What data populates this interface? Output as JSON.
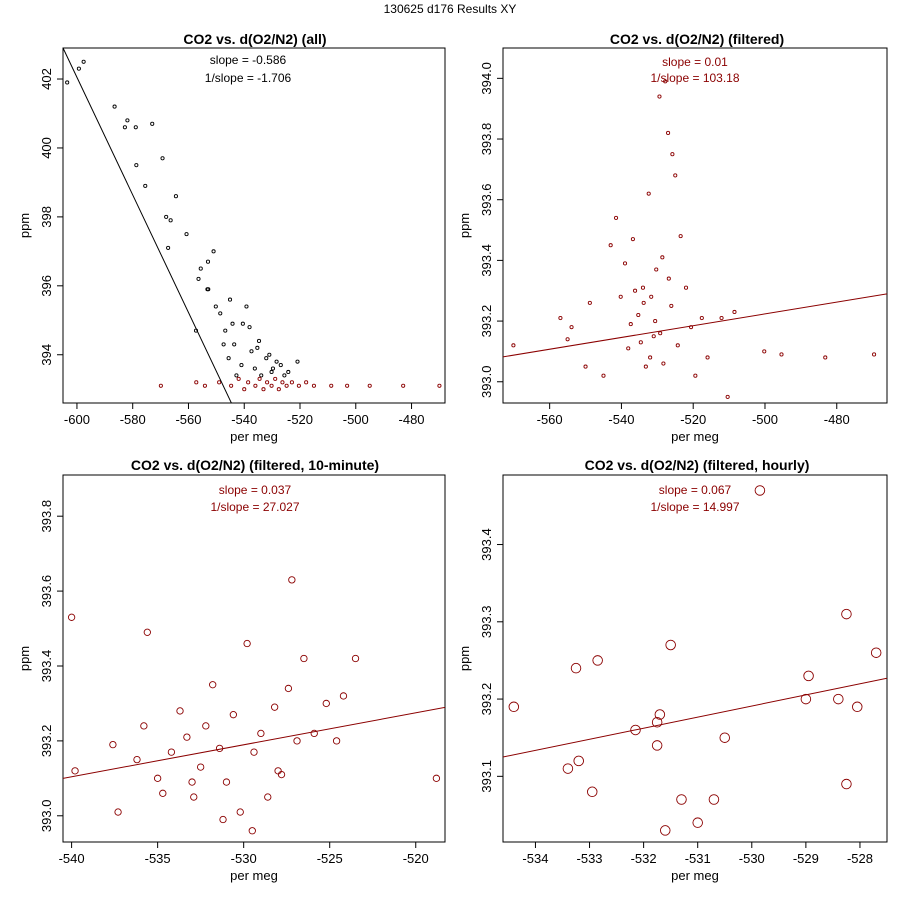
{
  "page_title": "130625   d176   Results XY",
  "colors": {
    "black": "#000000",
    "red": "#8b0000"
  },
  "chart_data": [
    {
      "type": "scatter",
      "title": "CO2 vs. d(O2/N2) (all)",
      "xlabel": "per meg",
      "ylabel": "ppm",
      "xlim": [
        -605,
        -468
      ],
      "ylim": [
        392.6,
        402.9
      ],
      "xticks": [
        -600,
        -580,
        -560,
        -540,
        -520,
        -500,
        -480
      ],
      "yticks": [
        394,
        396,
        398,
        400,
        402
      ],
      "annotations": [
        {
          "text": "slope = -0.586",
          "color": "black"
        },
        {
          "text": "1/slope = -1.706",
          "color": "black"
        }
      ],
      "fit_line": {
        "slope": -0.1706,
        "x0": -600,
        "y0": 402.05,
        "color": "black"
      },
      "series": [
        {
          "name": "all",
          "color": "black",
          "points": [
            [
              -603.5,
              401.9
            ],
            [
              -599.3,
              402.3
            ],
            [
              -597.6,
              402.5
            ],
            [
              -586.5,
              401.2
            ],
            [
              -582.8,
              400.6
            ],
            [
              -581.9,
              400.8
            ],
            [
              -578.9,
              400.6
            ],
            [
              -578.7,
              399.5
            ],
            [
              -575.5,
              398.9
            ],
            [
              -573.0,
              400.7
            ],
            [
              -569.3,
              399.7
            ],
            [
              -568.0,
              398.0
            ],
            [
              -567.3,
              397.1
            ],
            [
              -566.4,
              397.9
            ],
            [
              -564.5,
              398.6
            ],
            [
              -560.7,
              397.5
            ],
            [
              -555.6,
              396.5
            ],
            [
              -556.4,
              396.2
            ],
            [
              -553.0,
              396.7
            ],
            [
              -552.9,
              395.9
            ],
            [
              -551.0,
              397.0
            ],
            [
              -553.2,
              395.9
            ],
            [
              -550.2,
              395.4
            ],
            [
              -548.6,
              395.2
            ],
            [
              -546.8,
              394.7
            ],
            [
              -547.4,
              394.3
            ],
            [
              -545.1,
              395.6
            ],
            [
              -544.2,
              394.9
            ],
            [
              -543.6,
              394.3
            ],
            [
              -542.8,
              393.4
            ],
            [
              -540.5,
              394.9
            ],
            [
              -539.2,
              395.4
            ],
            [
              -538.1,
              394.8
            ],
            [
              -537.4,
              394.1
            ],
            [
              -536.2,
              393.6
            ],
            [
              -535.3,
              394.2
            ],
            [
              -533.9,
              393.4
            ],
            [
              -532.1,
              393.9
            ],
            [
              -531.0,
              394.0
            ],
            [
              -529.7,
              393.6
            ],
            [
              -528.4,
              393.8
            ],
            [
              -526.9,
              393.7
            ],
            [
              -525.6,
              393.4
            ],
            [
              -524.2,
              393.5
            ],
            [
              -520.9,
              393.8
            ],
            [
              -557.3,
              394.7
            ],
            [
              -545.6,
              393.9
            ],
            [
              -541.0,
              393.7
            ],
            [
              -534.7,
              394.4
            ],
            [
              -530.2,
              393.5
            ]
          ]
        },
        {
          "name": "filtered",
          "color": "red",
          "points": [
            [
              -569.9,
              393.1
            ],
            [
              -557.2,
              393.2
            ],
            [
              -554.1,
              393.1
            ],
            [
              -549.0,
              393.2
            ],
            [
              -544.7,
              393.1
            ],
            [
              -542.0,
              393.3
            ],
            [
              -540.0,
              393.0
            ],
            [
              -538.6,
              393.2
            ],
            [
              -536.0,
              393.1
            ],
            [
              -534.5,
              393.3
            ],
            [
              -533.1,
              393.0
            ],
            [
              -531.8,
              393.2
            ],
            [
              -530.2,
              393.1
            ],
            [
              -528.9,
              393.3
            ],
            [
              -527.6,
              393.0
            ],
            [
              -526.3,
              393.2
            ],
            [
              -524.8,
              393.1
            ],
            [
              -522.9,
              393.2
            ],
            [
              -520.4,
              393.1
            ],
            [
              -517.8,
              393.2
            ],
            [
              -515.0,
              393.1
            ],
            [
              -508.8,
              393.1
            ],
            [
              -503.1,
              393.1
            ],
            [
              -495.0,
              393.1
            ],
            [
              -483.0,
              393.1
            ],
            [
              -470.0,
              393.1
            ]
          ]
        }
      ]
    },
    {
      "type": "scatter",
      "title": "CO2 vs. d(O2/N2) (filtered)",
      "xlabel": "per meg",
      "ylabel": "ppm",
      "xlim": [
        -573,
        -466
      ],
      "ylim": [
        392.93,
        394.1
      ],
      "xticks": [
        -560,
        -540,
        -520,
        -500,
        -480
      ],
      "yticks": [
        393.0,
        393.2,
        393.4,
        393.6,
        393.8,
        394.0
      ],
      "annotations": [
        {
          "text": "slope = 0.01",
          "color": "red"
        },
        {
          "text": "1/slope = 103.18",
          "color": "red"
        }
      ],
      "fit_line": {
        "slope": 0.00194,
        "x0": -573,
        "y0": 393.082,
        "color": "red"
      },
      "series": [
        {
          "name": "filtered",
          "color": "red",
          "points": [
            [
              -570.1,
              393.12
            ],
            [
              -557.0,
              393.21
            ],
            [
              -555.0,
              393.14
            ],
            [
              -553.9,
              393.18
            ],
            [
              -550.0,
              393.05
            ],
            [
              -548.8,
              393.26
            ],
            [
              -545.0,
              393.02
            ],
            [
              -543.0,
              393.45
            ],
            [
              -541.5,
              393.54
            ],
            [
              -540.2,
              393.28
            ],
            [
              -539.0,
              393.39
            ],
            [
              -538.1,
              393.11
            ],
            [
              -536.8,
              393.47
            ],
            [
              -535.3,
              393.22
            ],
            [
              -534.0,
              393.31
            ],
            [
              -533.2,
              393.05
            ],
            [
              -532.4,
              393.62
            ],
            [
              -531.0,
              393.15
            ],
            [
              -530.3,
              393.37
            ],
            [
              -529.4,
              393.94
            ],
            [
              -528.6,
              393.41
            ],
            [
              -527.8,
              393.99
            ],
            [
              -527.0,
              393.82
            ],
            [
              -526.1,
              393.25
            ],
            [
              -525.8,
              393.75
            ],
            [
              -525.0,
              393.68
            ],
            [
              -524.3,
              393.12
            ],
            [
              -523.5,
              393.48
            ],
            [
              -522.0,
              393.31
            ],
            [
              -520.6,
              393.18
            ],
            [
              -519.4,
              393.02
            ],
            [
              -517.6,
              393.21
            ],
            [
              -516.0,
              393.08
            ],
            [
              -512.1,
              393.21
            ],
            [
              -510.4,
              392.95
            ],
            [
              -508.5,
              393.23
            ],
            [
              -500.2,
              393.1
            ],
            [
              -495.4,
              393.09
            ],
            [
              -483.2,
              393.08
            ],
            [
              -469.6,
              393.09
            ],
            [
              -537.4,
              393.19
            ],
            [
              -533.8,
              393.26
            ],
            [
              -532.0,
              393.08
            ],
            [
              -530.6,
              393.2
            ],
            [
              -529.2,
              393.16
            ],
            [
              -531.7,
              393.28
            ],
            [
              -534.6,
              393.13
            ],
            [
              -528.3,
              393.06
            ],
            [
              -526.8,
              393.34
            ],
            [
              -536.2,
              393.3
            ]
          ]
        }
      ]
    },
    {
      "type": "scatter",
      "title": "CO2 vs. d(O2/N2) (filtered, 10-minute)",
      "xlabel": "per meg",
      "ylabel": "ppm",
      "xlim": [
        -540.5,
        -518.3
      ],
      "ylim": [
        392.93,
        393.91
      ],
      "xticks": [
        -540,
        -535,
        -530,
        -525,
        -520
      ],
      "yticks": [
        393.0,
        393.2,
        393.4,
        393.6,
        393.8
      ],
      "annotations": [
        {
          "text": "slope = 0.037",
          "color": "red"
        },
        {
          "text": "1/slope = 27.027",
          "color": "red"
        }
      ],
      "fit_line": {
        "slope": 0.00853,
        "x0": -540.5,
        "y0": 393.1,
        "color": "red"
      },
      "series": [
        {
          "name": "10-minute",
          "color": "red",
          "points": [
            [
              -540.0,
              393.53
            ],
            [
              -539.8,
              393.12
            ],
            [
              -537.6,
              393.19
            ],
            [
              -537.3,
              393.01
            ],
            [
              -535.8,
              393.24
            ],
            [
              -535.6,
              393.49
            ],
            [
              -535.0,
              393.1
            ],
            [
              -534.7,
              393.06
            ],
            [
              -534.2,
              393.17
            ],
            [
              -533.7,
              393.28
            ],
            [
              -533.3,
              393.21
            ],
            [
              -532.9,
              393.05
            ],
            [
              -532.5,
              393.13
            ],
            [
              -532.2,
              393.24
            ],
            [
              -531.8,
              393.35
            ],
            [
              -531.4,
              393.18
            ],
            [
              -531.0,
              393.09
            ],
            [
              -530.6,
              393.27
            ],
            [
              -530.2,
              393.01
            ],
            [
              -529.8,
              393.46
            ],
            [
              -529.4,
              393.17
            ],
            [
              -529.0,
              393.22
            ],
            [
              -528.6,
              393.05
            ],
            [
              -528.2,
              393.29
            ],
            [
              -527.8,
              393.11
            ],
            [
              -527.4,
              393.34
            ],
            [
              -527.2,
              393.63
            ],
            [
              -526.9,
              393.2
            ],
            [
              -526.5,
              393.42
            ],
            [
              -525.9,
              393.22
            ],
            [
              -525.2,
              393.3
            ],
            [
              -524.6,
              393.2
            ],
            [
              -524.2,
              393.32
            ],
            [
              -523.5,
              393.42
            ],
            [
              -518.8,
              393.1
            ],
            [
              -536.2,
              393.15
            ],
            [
              -533.0,
              393.09
            ],
            [
              -531.2,
              392.99
            ],
            [
              -529.5,
              392.96
            ],
            [
              -528.0,
              393.12
            ]
          ]
        }
      ]
    },
    {
      "type": "scatter",
      "title": "CO2 vs. d(O2/N2) (filtered, hourly)",
      "xlabel": "per meg",
      "ylabel": "ppm",
      "xlim": [
        -534.6,
        -527.5
      ],
      "ylim": [
        393.015,
        393.49
      ],
      "xticks": [
        -534,
        -533,
        -532,
        -531,
        -530,
        -529,
        -528
      ],
      "yticks": [
        393.1,
        393.2,
        393.3,
        393.4
      ],
      "annotations": [
        {
          "text": "slope = 0.067",
          "color": "red"
        },
        {
          "text": "1/slope = 14.997",
          "color": "red"
        }
      ],
      "fit_line": {
        "slope": 0.01435,
        "x0": -534.6,
        "y0": 393.125,
        "color": "red"
      },
      "series": [
        {
          "name": "hourly",
          "color": "red",
          "points": [
            [
              -534.4,
              393.19
            ],
            [
              -533.4,
              393.11
            ],
            [
              -533.25,
              393.24
            ],
            [
              -533.2,
              393.12
            ],
            [
              -532.95,
              393.08
            ],
            [
              -532.85,
              393.25
            ],
            [
              -532.15,
              393.16
            ],
            [
              -531.75,
              393.17
            ],
            [
              -531.75,
              393.14
            ],
            [
              -531.7,
              393.18
            ],
            [
              -531.6,
              393.03
            ],
            [
              -531.5,
              393.27
            ],
            [
              -531.3,
              393.07
            ],
            [
              -531.0,
              393.04
            ],
            [
              -530.7,
              393.07
            ],
            [
              -530.5,
              393.15
            ],
            [
              -529.85,
              393.47
            ],
            [
              -529.0,
              393.2
            ],
            [
              -528.95,
              393.23
            ],
            [
              -528.4,
              393.2
            ],
            [
              -528.25,
              393.31
            ],
            [
              -528.25,
              393.09
            ],
            [
              -528.05,
              393.19
            ],
            [
              -527.7,
              393.26
            ]
          ]
        }
      ]
    }
  ]
}
